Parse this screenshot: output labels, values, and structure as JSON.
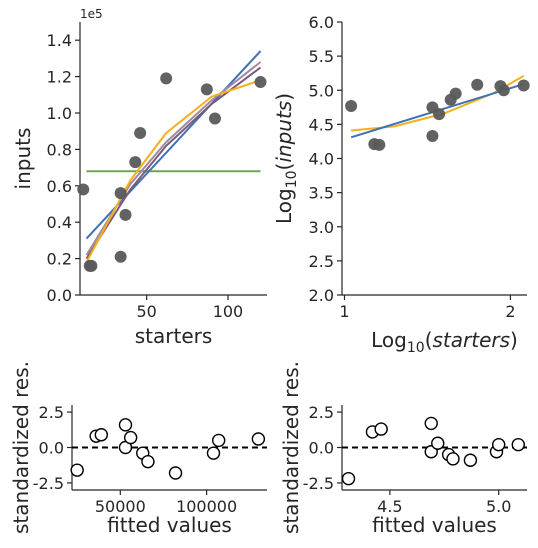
{
  "chart_data": [
    {
      "type": "scatter",
      "id": "p1",
      "xlabel": "starters",
      "ylabel": "inputs",
      "offset_text": "1e5",
      "xlim": [
        9,
        124
      ],
      "ylim": [
        0,
        150000
      ],
      "xticks": [
        {
          "v": 50,
          "label": "50"
        },
        {
          "v": 100,
          "label": "100"
        }
      ],
      "yticks": [
        {
          "v": 0,
          "label": "0.0"
        },
        {
          "v": 20000,
          "label": "0.2"
        },
        {
          "v": 40000,
          "label": "0.4"
        },
        {
          "v": 60000,
          "label": "0.6"
        },
        {
          "v": 80000,
          "label": "0.8"
        },
        {
          "v": 100000,
          "label": "1.0"
        },
        {
          "v": 120000,
          "label": "1.2"
        },
        {
          "v": 140000,
          "label": "1.4"
        }
      ],
      "points": [
        [
          11,
          58000
        ],
        [
          15,
          16000
        ],
        [
          16,
          16000
        ],
        [
          34,
          21000
        ],
        [
          34,
          56000
        ],
        [
          37,
          44000
        ],
        [
          43,
          73000
        ],
        [
          46,
          89000
        ],
        [
          62,
          119000
        ],
        [
          87,
          113000
        ],
        [
          92,
          97000
        ],
        [
          120,
          117000
        ]
      ],
      "point_color": "#5a5a5a",
      "lines": [
        {
          "color": "#6aa84f",
          "x": [
            13,
            120
          ],
          "y": [
            68000,
            68000
          ]
        },
        {
          "color": "#3e72b5",
          "x": [
            13,
            120
          ],
          "y": [
            31000,
            134000
          ]
        },
        {
          "color": "#a08aa0",
          "x": [
            13,
            40,
            62,
            90,
            120
          ],
          "y": [
            22000,
            61000,
            84000,
            107000,
            128000
          ]
        },
        {
          "color": "#7a5a78",
          "x": [
            13,
            40,
            62,
            90,
            120
          ],
          "y": [
            20000,
            58000,
            82000,
            105000,
            125000
          ]
        },
        {
          "color": "#f5b01a",
          "x": [
            13,
            40,
            62,
            90,
            100,
            120
          ],
          "y": [
            18000,
            63000,
            89000,
            109000,
            112000,
            118000
          ]
        }
      ]
    },
    {
      "type": "scatter",
      "id": "p2",
      "xlabel": "Log10(starters)",
      "ylabel": "Log10(inputs)",
      "xlim": [
        0.985,
        2.1
      ],
      "ylim": [
        2.0,
        6.0
      ],
      "xticks": [
        {
          "v": 1,
          "label": "1"
        },
        {
          "v": 2,
          "label": "2"
        }
      ],
      "yticks": [
        {
          "v": 2.0,
          "label": "2.0"
        },
        {
          "v": 2.5,
          "label": "2.5"
        },
        {
          "v": 3.0,
          "label": "3.0"
        },
        {
          "v": 3.5,
          "label": "3.5"
        },
        {
          "v": 4.0,
          "label": "4.0"
        },
        {
          "v": 4.5,
          "label": "4.5"
        },
        {
          "v": 5.0,
          "label": "5.0"
        },
        {
          "v": 5.5,
          "label": "5.5"
        },
        {
          "v": 6.0,
          "label": "6.0"
        }
      ],
      "points": [
        [
          1.04,
          4.77
        ],
        [
          1.18,
          4.21
        ],
        [
          1.21,
          4.2
        ],
        [
          1.53,
          4.33
        ],
        [
          1.53,
          4.75
        ],
        [
          1.57,
          4.65
        ],
        [
          1.64,
          4.86
        ],
        [
          1.67,
          4.95
        ],
        [
          1.8,
          5.08
        ],
        [
          1.94,
          5.06
        ],
        [
          1.96,
          5.0
        ],
        [
          2.08,
          5.07
        ]
      ],
      "point_color": "#5a5a5a",
      "lines": [
        {
          "color": "#f5b01a",
          "x": [
            1.04,
            1.3,
            1.6,
            1.9,
            2.08
          ],
          "y": [
            4.41,
            4.47,
            4.66,
            4.96,
            5.21
          ]
        },
        {
          "color": "#3e72b5",
          "x": [
            1.04,
            2.08
          ],
          "y": [
            4.31,
            5.09
          ]
        }
      ]
    },
    {
      "type": "scatter",
      "id": "p3",
      "xlabel": "fitted values",
      "ylabel": "standardized res.",
      "xlim": [
        22000,
        135000
      ],
      "ylim": [
        -3.0,
        3.0
      ],
      "xticks": [
        {
          "v": 50000,
          "label": "50000"
        },
        {
          "v": 100000,
          "label": "100000"
        }
      ],
      "yticks": [
        {
          "v": -2.5,
          "label": "-2.5"
        },
        {
          "v": 0.0,
          "label": "0.0"
        },
        {
          "v": 2.5,
          "label": "2.5"
        }
      ],
      "points": [
        [
          25000,
          -1.6
        ],
        [
          36000,
          0.8
        ],
        [
          39000,
          0.9
        ],
        [
          53000,
          1.6
        ],
        [
          53000,
          0.0
        ],
        [
          56000,
          0.7
        ],
        [
          63000,
          -0.4
        ],
        [
          66000,
          -1.0
        ],
        [
          82000,
          -1.8
        ],
        [
          104000,
          -0.4
        ],
        [
          107000,
          0.5
        ],
        [
          130000,
          0.6
        ]
      ],
      "hollow": true,
      "hline": 0
    },
    {
      "type": "scatter",
      "id": "p4",
      "xlabel": "fitted values",
      "ylabel": "standardized res.",
      "xlim": [
        4.28,
        5.13
      ],
      "ylim": [
        -3.0,
        3.0
      ],
      "xticks": [
        {
          "v": 4.5,
          "label": "4.5"
        },
        {
          "v": 5.0,
          "label": "5.0"
        }
      ],
      "yticks": [
        {
          "v": -2.5,
          "label": "-2.5"
        },
        {
          "v": 0.0,
          "label": "0.0"
        },
        {
          "v": 2.5,
          "label": "2.5"
        }
      ],
      "points": [
        [
          4.31,
          -2.2
        ],
        [
          4.42,
          1.1
        ],
        [
          4.46,
          1.3
        ],
        [
          4.69,
          1.7
        ],
        [
          4.69,
          -0.3
        ],
        [
          4.72,
          0.3
        ],
        [
          4.77,
          -0.5
        ],
        [
          4.79,
          -0.8
        ],
        [
          4.87,
          -0.9
        ],
        [
          4.99,
          -0.3
        ],
        [
          5.0,
          0.2
        ],
        [
          5.09,
          0.2
        ]
      ],
      "hollow": true,
      "hline": 0
    }
  ]
}
